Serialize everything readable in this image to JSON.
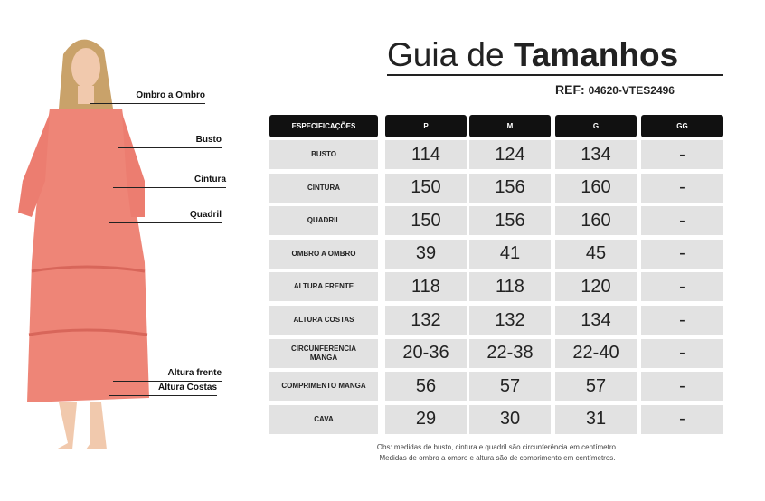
{
  "header": {
    "title_light": "Guia de",
    "title_bold": "Tamanhos",
    "ref_label": "REF:",
    "ref_code": "04620-VTES2496"
  },
  "figure": {
    "labels": [
      "Ombro a Ombro",
      "Busto",
      "Cintura",
      "Quadril",
      "Altura frente",
      "Altura Costas"
    ]
  },
  "table": {
    "columns": [
      "ESPECIFICAÇÕES",
      "P",
      "M",
      "G",
      "GG"
    ],
    "rows": [
      [
        "BUSTO",
        114,
        124,
        134,
        "-"
      ],
      [
        "CINTURA",
        150,
        156,
        160,
        "-"
      ],
      [
        "QUADRIL",
        150,
        156,
        160,
        "-"
      ],
      [
        "OMBRO A OMBRO",
        39,
        41,
        45,
        "-"
      ],
      [
        "ALTURA FRENTE",
        118,
        118,
        120,
        "-"
      ],
      [
        "ALTURA COSTAS",
        132,
        132,
        134,
        "-"
      ],
      [
        "CIRCUNFERENCIA MANGA",
        "20-36",
        "22-38",
        "22-40",
        "-"
      ],
      [
        "COMPRIMENTO MANGA",
        56,
        57,
        57,
        "-"
      ],
      [
        "CAVA",
        29,
        30,
        31,
        "-"
      ]
    ]
  },
  "notes": [
    "Obs: medidas de busto, cintura e quadril são circunferência em centímetro.",
    "Medidas de ombro a ombro e altura são de comprimento em centímetros."
  ]
}
